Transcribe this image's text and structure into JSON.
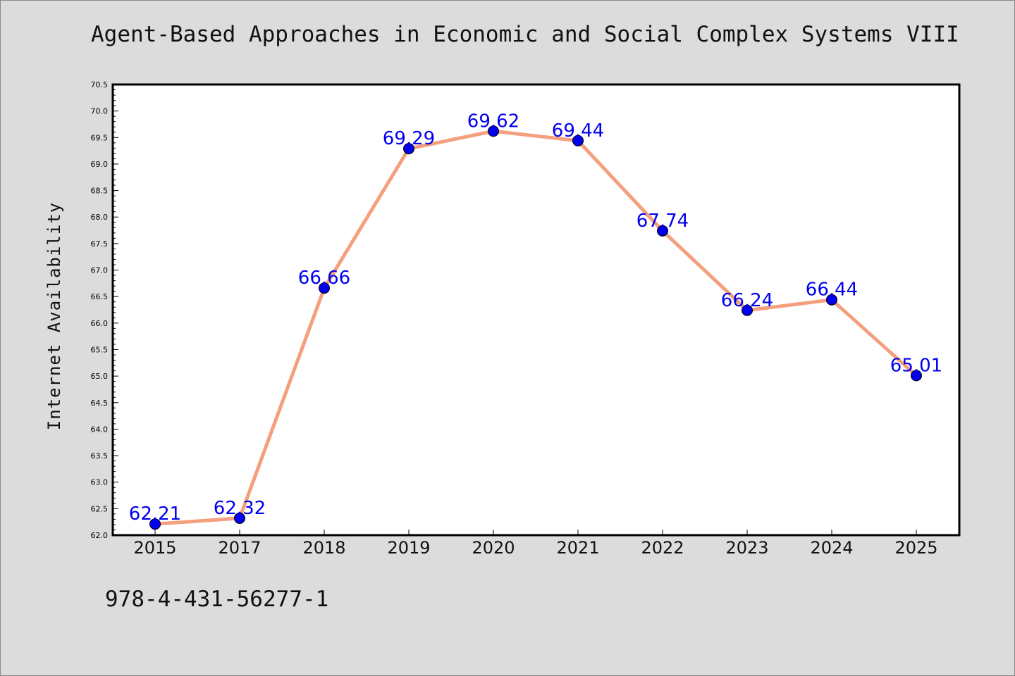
{
  "chart_data": {
    "type": "line",
    "title": "Agent-Based Approaches in Economic and Social Complex Systems VIII",
    "xlabel": "",
    "ylabel": "Internet Availability",
    "categories": [
      "2015",
      "2017",
      "2018",
      "2019",
      "2020",
      "2021",
      "2022",
      "2023",
      "2024",
      "2025"
    ],
    "values": [
      62.21,
      62.32,
      66.66,
      69.29,
      69.62,
      69.44,
      67.74,
      66.24,
      66.44,
      65.01
    ],
    "value_labels": [
      "62.21",
      "62.32",
      "66.66",
      "69.29",
      "69.62",
      "69.44",
      "67.74",
      "66.24",
      "66.44",
      "65.01"
    ],
    "ylim": [
      62.0,
      70.5
    ],
    "y_tick_step": 0.5,
    "grid": false,
    "line_color": "#f4a07f",
    "marker_color": "#0000ee",
    "label_color": "#0000ee"
  },
  "footer_text": "978-4-431-56277-1"
}
